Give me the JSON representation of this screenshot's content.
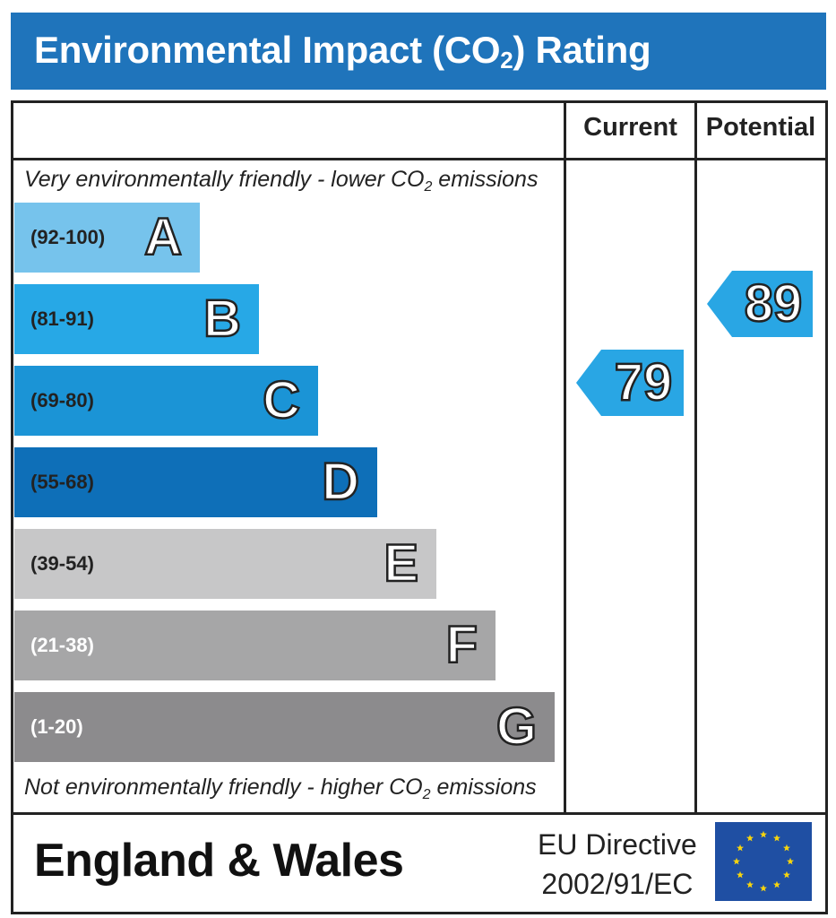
{
  "header": {
    "title_pre": "Environmental Impact (CO",
    "title_sub": "2",
    "title_post": ") Rating"
  },
  "columns": {
    "current_label": "Current",
    "potential_label": "Potential"
  },
  "notes": {
    "top_pre": "Very environmentally friendly - lower CO",
    "top_sub": "2",
    "top_post": " emissions",
    "bottom_pre": "Not environmentally friendly - higher CO",
    "bottom_sub": "2",
    "bottom_post": " emissions"
  },
  "colors": {
    "header": "#1f74bb",
    "bands": [
      "#76c3ec",
      "#27a8e6",
      "#1b94d6",
      "#0e6fb8",
      "#c7c7c8",
      "#a6a6a7",
      "#8c8b8d"
    ],
    "current_arrow": "#29a6e4",
    "potential_arrow": "#29a6e4"
  },
  "chart_data": {
    "type": "bar",
    "bands": [
      {
        "letter": "A",
        "range": "(92-100)",
        "min": 92,
        "max": 100
      },
      {
        "letter": "B",
        "range": "(81-91)",
        "min": 81,
        "max": 91
      },
      {
        "letter": "C",
        "range": "(69-80)",
        "min": 69,
        "max": 80
      },
      {
        "letter": "D",
        "range": "(55-68)",
        "min": 55,
        "max": 68
      },
      {
        "letter": "E",
        "range": "(39-54)",
        "min": 39,
        "max": 54
      },
      {
        "letter": "F",
        "range": "(21-38)",
        "min": 21,
        "max": 38
      },
      {
        "letter": "G",
        "range": "(1-20)",
        "min": 1,
        "max": 20
      }
    ],
    "current": 79,
    "potential": 89
  },
  "footer": {
    "region": "England & Wales",
    "directive_line1": "EU Directive",
    "directive_line2": "2002/91/EC",
    "flag_icon": "eu-flag-icon"
  }
}
